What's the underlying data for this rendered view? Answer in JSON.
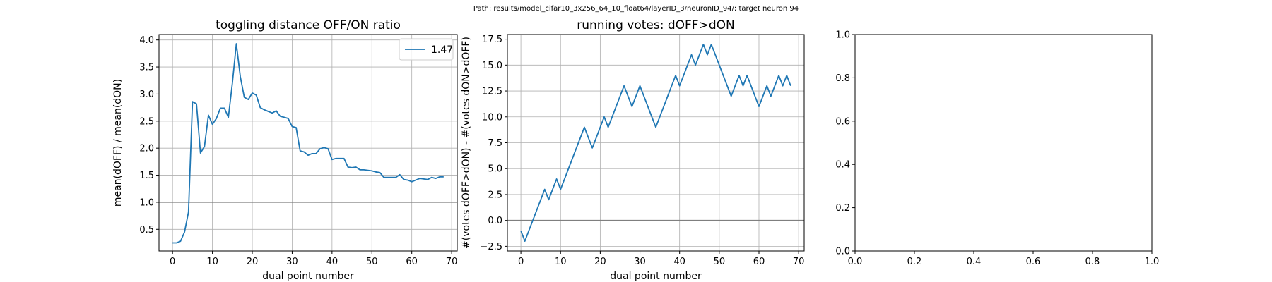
{
  "suptitle": "Path: results/model_cifar10_3x256_64_10_float64/layerID_3/neuronID_94/; target neuron 94",
  "colors": {
    "series": "#1f77b4",
    "reference_line": "#7f7f7f",
    "grid": "#b0b0b0",
    "legend_border": "#cccccc"
  },
  "chart_data": [
    {
      "type": "line",
      "title": "toggling distance OFF/ON ratio",
      "xlabel": "dual point number",
      "ylabel": "mean(dOFF) / mean(dON)",
      "xlim": [
        -3.4,
        71.4
      ],
      "ylim": [
        0.1,
        4.1
      ],
      "xticks": [
        0,
        10,
        20,
        30,
        40,
        50,
        60,
        70
      ],
      "yticks": [
        0.5,
        1.0,
        1.5,
        2.0,
        2.5,
        3.0,
        3.5,
        4.0
      ],
      "xtick_labels": [
        "0",
        "10",
        "20",
        "30",
        "40",
        "50",
        "60",
        "70"
      ],
      "ytick_labels": [
        "0.5",
        "1.0",
        "1.5",
        "2.0",
        "2.5",
        "3.0",
        "3.5",
        "4.0"
      ],
      "grid": true,
      "hline": 1.0,
      "legend": {
        "position": "top-right",
        "entries": [
          "1.47"
        ]
      },
      "series": [
        {
          "name": "1.47",
          "x": [
            0,
            1,
            2,
            3,
            4,
            5,
            6,
            7,
            8,
            9,
            10,
            11,
            12,
            13,
            14,
            15,
            16,
            17,
            18,
            19,
            20,
            21,
            22,
            23,
            24,
            25,
            26,
            27,
            28,
            29,
            30,
            31,
            32,
            33,
            34,
            35,
            36,
            37,
            38,
            39,
            40,
            41,
            42,
            43,
            44,
            45,
            46,
            47,
            48,
            49,
            50,
            51,
            52,
            53,
            54,
            55,
            56,
            57,
            58,
            59,
            60,
            61,
            62,
            63,
            64,
            65,
            66,
            67,
            68
          ],
          "y": [
            0.25,
            0.25,
            0.28,
            0.45,
            0.82,
            2.86,
            2.82,
            1.91,
            2.03,
            2.61,
            2.44,
            2.55,
            2.74,
            2.74,
            2.57,
            3.2,
            3.93,
            3.32,
            2.94,
            2.9,
            3.02,
            2.98,
            2.75,
            2.71,
            2.68,
            2.65,
            2.69,
            2.59,
            2.57,
            2.55,
            2.4,
            2.38,
            1.95,
            1.93,
            1.87,
            1.9,
            1.9,
            1.99,
            2.01,
            1.99,
            1.79,
            1.81,
            1.81,
            1.81,
            1.65,
            1.64,
            1.65,
            1.6,
            1.6,
            1.59,
            1.58,
            1.56,
            1.55,
            1.46,
            1.46,
            1.46,
            1.46,
            1.51,
            1.42,
            1.41,
            1.38,
            1.41,
            1.44,
            1.43,
            1.42,
            1.46,
            1.44,
            1.47,
            1.47
          ]
        }
      ]
    },
    {
      "type": "line",
      "title": "running votes: dOFF>dON",
      "xlabel": "dual point number",
      "ylabel": "#(votes dOFF>dON) - #(votes dON>dOFF)",
      "xlim": [
        -3.4,
        71.4
      ],
      "ylim": [
        -2.95,
        17.95
      ],
      "xticks": [
        0,
        10,
        20,
        30,
        40,
        50,
        60,
        70
      ],
      "yticks": [
        -2.5,
        0.0,
        2.5,
        5.0,
        7.5,
        10.0,
        12.5,
        15.0,
        17.5
      ],
      "xtick_labels": [
        "0",
        "10",
        "20",
        "30",
        "40",
        "50",
        "60",
        "70"
      ],
      "ytick_labels": [
        "−2.5",
        "0.0",
        "2.5",
        "5.0",
        "7.5",
        "10.0",
        "12.5",
        "15.0",
        "17.5"
      ],
      "grid": true,
      "hline": 0.0,
      "series": [
        {
          "x": [
            0,
            1,
            2,
            3,
            4,
            5,
            6,
            7,
            8,
            9,
            10,
            11,
            12,
            13,
            14,
            15,
            16,
            17,
            18,
            19,
            20,
            21,
            22,
            23,
            24,
            25,
            26,
            27,
            28,
            29,
            30,
            31,
            32,
            33,
            34,
            35,
            36,
            37,
            38,
            39,
            40,
            41,
            42,
            43,
            44,
            45,
            46,
            47,
            48,
            49,
            50,
            51,
            52,
            53,
            54,
            55,
            56,
            57,
            58,
            59,
            60,
            61,
            62,
            63,
            64,
            65,
            66,
            67,
            68
          ],
          "y": [
            -1,
            -2,
            -1,
            0,
            1,
            2,
            3,
            2,
            3,
            4,
            3,
            4,
            5,
            6,
            7,
            8,
            9,
            8,
            7,
            8,
            9,
            10,
            9,
            10,
            11,
            12,
            13,
            12,
            11,
            12,
            13,
            12,
            11,
            10,
            9,
            10,
            11,
            12,
            13,
            14,
            13,
            14,
            15,
            16,
            15,
            16,
            17,
            16,
            17,
            16,
            15,
            14,
            13,
            12,
            13,
            14,
            13,
            14,
            13,
            12,
            11,
            12,
            13,
            12,
            13,
            14,
            13,
            14,
            13
          ]
        }
      ]
    },
    {
      "type": "line",
      "title": "",
      "xlabel": "",
      "ylabel": "",
      "xlim": [
        0,
        1
      ],
      "ylim": [
        0,
        1
      ],
      "xticks": [
        0,
        0.2,
        0.4,
        0.6,
        0.8,
        1.0
      ],
      "yticks": [
        0,
        0.2,
        0.4,
        0.6,
        0.8,
        1.0
      ],
      "xtick_labels": [
        "0.0",
        "0.2",
        "0.4",
        "0.6",
        "0.8",
        "1.0"
      ],
      "ytick_labels": [
        "0.0",
        "0.2",
        "0.4",
        "0.6",
        "0.8",
        "1.0"
      ],
      "grid": false,
      "series": []
    }
  ]
}
